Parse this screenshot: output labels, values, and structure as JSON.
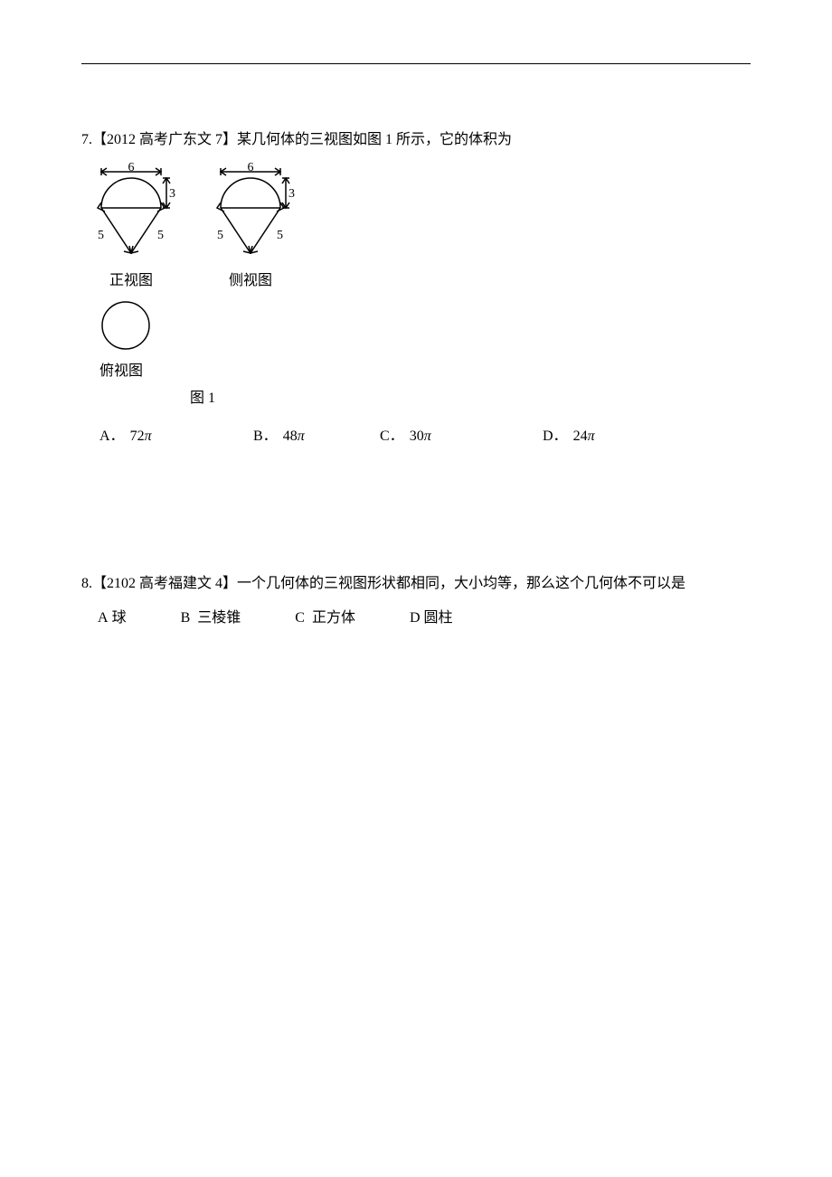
{
  "q7": {
    "number": "7.",
    "source": "【2012 高考广东文 7】",
    "text": "某几何体的三视图如图 1 所示，它的体积为",
    "figure": {
      "front_view": {
        "label": "正视图",
        "top_width": "6",
        "height": "3",
        "slant_left": "5",
        "slant_right": "5",
        "stroke": "#000000"
      },
      "side_view": {
        "label": "侧视图",
        "top_width": "6",
        "height": "3",
        "slant_left": "5",
        "slant_right": "5",
        "stroke": "#000000"
      },
      "top_view": {
        "label": "俯视图",
        "stroke": "#000000"
      },
      "caption": "图 1"
    },
    "options": {
      "A": {
        "coef": "72",
        "sym": "π"
      },
      "B": {
        "coef": "48",
        "sym": "π"
      },
      "C": {
        "coef": "30",
        "sym": "π"
      },
      "D": {
        "coef": "24",
        "sym": "π"
      }
    },
    "option_positions": {
      "A": 20,
      "B": 190,
      "C": 330,
      "D": 510
    }
  },
  "q8": {
    "number": "8.",
    "source": "【2102 高考福建文 4】",
    "text": "一个几何体的三视图形状都相同，大小均等，那么这个几何体不可以是",
    "options": {
      "A": "球",
      "B": "三棱锥",
      "C": "正方体",
      "D": "圆柱"
    }
  },
  "colors": {
    "text": "#000000",
    "bg": "#ffffff"
  }
}
